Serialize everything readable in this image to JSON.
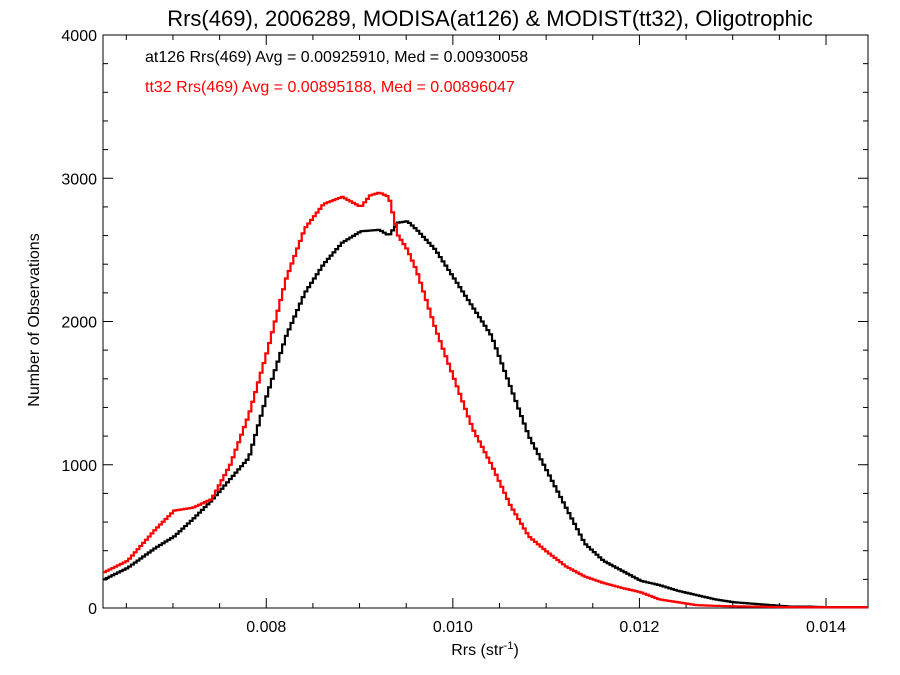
{
  "chart_data": {
    "type": "line",
    "title": "Rrs(469), 2006289, MODISA(at126) & MODIST(tt32), Oligotrophic",
    "xlabel": "Rrs (str",
    "xlabel_superscript": "-1",
    "xlabel_close": ")",
    "ylabel": "Number of Observations",
    "xlim": [
      0.00625,
      0.01445
    ],
    "ylim": [
      0,
      4000
    ],
    "x_ticks": [
      0.008,
      0.01,
      0.012,
      0.014
    ],
    "x_tick_labels": [
      "0.008",
      "0.010",
      "0.012",
      "0.014"
    ],
    "y_ticks": [
      0,
      1000,
      2000,
      3000,
      4000
    ],
    "y_tick_labels": [
      "0",
      "1000",
      "2000",
      "3000",
      "4000"
    ],
    "grid": false,
    "annotations": [
      {
        "text": "at126 Rrs(469) Avg = 0.00925910, Med = 0.00930058",
        "color": "#000000"
      },
      {
        "text": "tt32 Rrs(469) Avg = 0.00895188, Med = 0.00896047",
        "color": "#ff0000"
      }
    ],
    "series": [
      {
        "color": "#000000",
        "x": [
          0.00625,
          0.0065,
          0.0068,
          0.007,
          0.0072,
          0.0074,
          0.0076,
          0.0078,
          0.008,
          0.0082,
          0.0084,
          0.0086,
          0.0088,
          0.009,
          0.0092,
          0.0093,
          0.0094,
          0.0095,
          0.0096,
          0.0098,
          0.01,
          0.0102,
          0.0104,
          0.0106,
          0.0108,
          0.011,
          0.0112,
          0.0114,
          0.0116,
          0.0118,
          0.012,
          0.0122,
          0.0124,
          0.0126,
          0.0128,
          0.013,
          0.0132,
          0.0134,
          0.0136,
          0.0138,
          0.014,
          0.01445
        ],
        "y": [
          200,
          280,
          420,
          500,
          620,
          750,
          900,
          1050,
          1500,
          1900,
          2200,
          2400,
          2550,
          2630,
          2640,
          2600,
          2690,
          2700,
          2640,
          2500,
          2300,
          2100,
          1900,
          1550,
          1200,
          950,
          700,
          450,
          330,
          260,
          190,
          160,
          120,
          90,
          60,
          40,
          30,
          20,
          10,
          10,
          5,
          5
        ]
      },
      {
        "color": "#ff0000",
        "x": [
          0.00625,
          0.0065,
          0.0068,
          0.007,
          0.0072,
          0.0074,
          0.0076,
          0.0078,
          0.008,
          0.0082,
          0.0084,
          0.0086,
          0.0088,
          0.009,
          0.0091,
          0.0092,
          0.0093,
          0.0094,
          0.0095,
          0.0096,
          0.0098,
          0.01,
          0.0102,
          0.0104,
          0.0106,
          0.0108,
          0.011,
          0.0112,
          0.0114,
          0.0116,
          0.0118,
          0.012,
          0.0122,
          0.0124,
          0.0126,
          0.0128,
          0.013,
          0.0132,
          0.0134,
          0.0136,
          0.0138,
          0.014,
          0.01445
        ],
        "y": [
          250,
          330,
          550,
          680,
          700,
          760,
          1000,
          1350,
          1800,
          2300,
          2650,
          2820,
          2870,
          2800,
          2880,
          2900,
          2870,
          2600,
          2500,
          2350,
          1950,
          1600,
          1250,
          1000,
          720,
          500,
          390,
          290,
          220,
          175,
          140,
          110,
          60,
          40,
          20,
          15,
          12,
          10,
          8,
          6,
          5,
          5,
          5
        ]
      }
    ]
  }
}
